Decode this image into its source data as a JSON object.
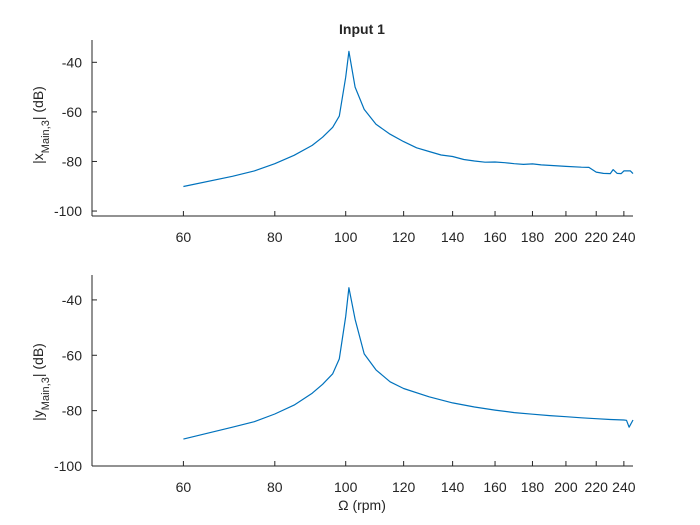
{
  "chart_data": [
    {
      "type": "line",
      "title": "Input 1",
      "xlabel": "",
      "ylabel_main": "|x",
      "ylabel_sub": "Main,3",
      "ylabel_tail": "| (dB)",
      "x_scale": "log",
      "xlim": [
        45,
        247
      ],
      "ylim": [
        -102,
        -31
      ],
      "xticks": [
        60,
        80,
        100,
        120,
        140,
        160,
        180,
        200,
        220,
        240
      ],
      "xtick_labels": [
        "60",
        "80",
        "100",
        "120",
        "140",
        "160",
        "180",
        "200",
        "220",
        "240"
      ],
      "yticks": [
        -40,
        -60,
        -80,
        -100
      ],
      "ytick_labels": [
        "-40",
        "-60",
        "-80",
        "-100"
      ],
      "grid": false,
      "color": "#0072BD",
      "x": [
        60,
        70,
        75,
        80,
        85,
        90,
        93,
        96,
        98,
        100,
        101,
        103,
        106,
        110,
        115,
        120,
        125,
        130,
        135,
        140,
        145,
        150,
        155,
        160,
        165,
        170,
        175,
        180,
        185,
        190,
        195,
        200,
        210,
        215,
        220,
        225,
        230,
        232,
        235,
        238,
        240,
        243,
        245,
        247
      ],
      "y": [
        -90.1,
        -86.0,
        -83.8,
        -80.9,
        -77.5,
        -73.5,
        -70.2,
        -66.2,
        -61.7,
        -46,
        -35.6,
        -50,
        -59,
        -65,
        -69,
        -72,
        -74.5,
        -76,
        -77.4,
        -78,
        -79.2,
        -79.8,
        -80.3,
        -80.2,
        -80.5,
        -80.9,
        -81.2,
        -81.0,
        -81.4,
        -81.6,
        -81.8,
        -82.0,
        -82.3,
        -82.4,
        -84.3,
        -84.8,
        -84.9,
        -83.3,
        -84.8,
        -84.9,
        -83.8,
        -83.8,
        -83.8,
        -84.9
      ]
    },
    {
      "type": "line",
      "title": "",
      "xlabel": "Ω (rpm)",
      "ylabel_main": "|y",
      "ylabel_sub": "Main,3",
      "ylabel_tail": "| (dB)",
      "x_scale": "log",
      "xlim": [
        45,
        247
      ],
      "ylim": [
        -100,
        -31
      ],
      "xticks": [
        60,
        80,
        100,
        120,
        140,
        160,
        180,
        200,
        220,
        240
      ],
      "xtick_labels": [
        "60",
        "80",
        "100",
        "120",
        "140",
        "160",
        "180",
        "200",
        "220",
        "240"
      ],
      "yticks": [
        -40,
        -60,
        -80,
        -100
      ],
      "ytick_labels": [
        "-40",
        "-60",
        "-80",
        "-100"
      ],
      "grid": false,
      "color": "#0072BD",
      "x": [
        60,
        70,
        75,
        80,
        85,
        90,
        93,
        96,
        98,
        100,
        101,
        103,
        106,
        110,
        115,
        120,
        130,
        140,
        150,
        160,
        170,
        180,
        190,
        200,
        210,
        220,
        230,
        240,
        242,
        244,
        247
      ],
      "y": [
        -90.3,
        -86.0,
        -84.0,
        -81.2,
        -78.0,
        -73.7,
        -70.5,
        -66.7,
        -61.3,
        -46,
        -35.6,
        -47,
        -59.5,
        -65.3,
        -69.6,
        -72.0,
        -75.0,
        -77.2,
        -78.7,
        -79.8,
        -80.7,
        -81.3,
        -81.8,
        -82.2,
        -82.6,
        -82.9,
        -83.2,
        -83.4,
        -83.5,
        -86.0,
        -83.4
      ]
    }
  ]
}
